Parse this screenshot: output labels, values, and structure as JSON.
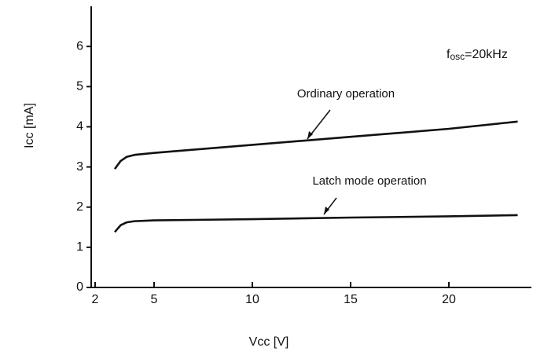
{
  "chart_data": {
    "type": "line",
    "x_label": "Vcc [V]",
    "y_label": "Icc [mA]",
    "annotation_fosc": {
      "symbol": "f",
      "subscript": "osc",
      "text": "=20kHz"
    },
    "x": [
      3,
      3.3,
      3.6,
      4,
      5,
      10,
      15,
      20,
      23.5
    ],
    "series": [
      {
        "name": "Ordinary operation",
        "color": "#111111",
        "values": [
          2.95,
          3.15,
          3.25,
          3.3,
          3.35,
          3.55,
          3.75,
          3.95,
          4.13
        ]
      },
      {
        "name": "Latch mode operation",
        "color": "#111111",
        "values": [
          1.38,
          1.55,
          1.62,
          1.65,
          1.67,
          1.7,
          1.74,
          1.77,
          1.8
        ]
      }
    ],
    "xlim": [
      1.8,
      24.2
    ],
    "xticks": [
      2,
      5,
      10,
      15,
      20
    ],
    "ylim": [
      0,
      7
    ],
    "yticks": [
      0,
      1,
      2,
      3,
      4,
      5,
      6
    ],
    "grid": false
  }
}
